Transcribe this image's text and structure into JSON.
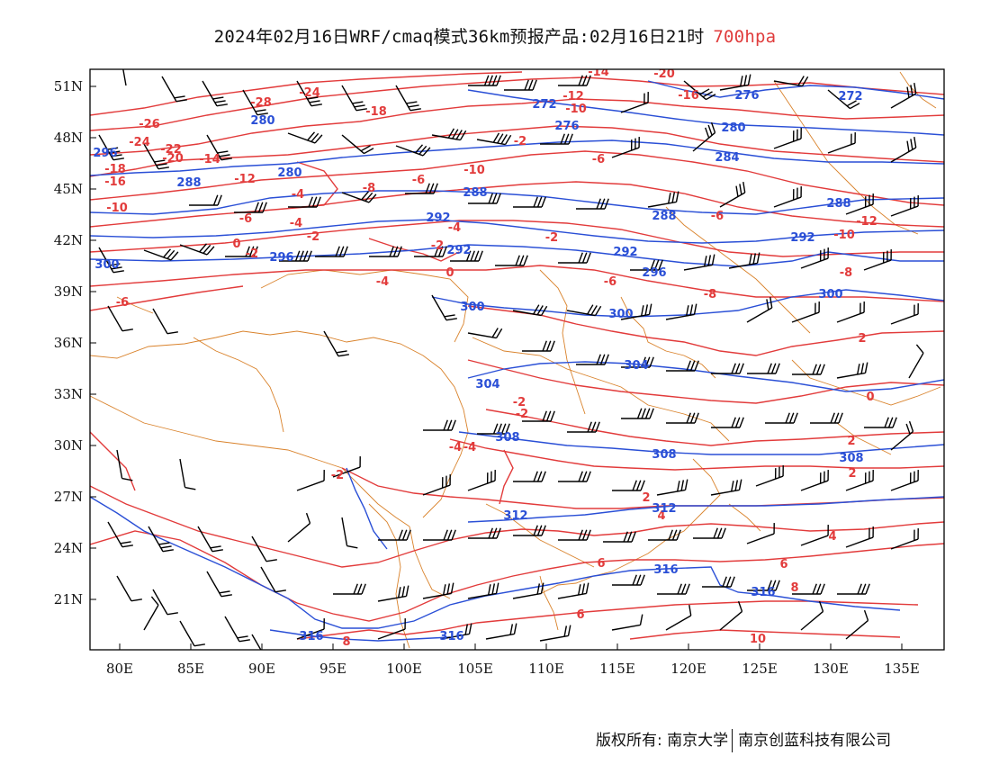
{
  "title": {
    "main": "2024年02月16日WRF/cmaq模式36km预报产品:02月16日21时",
    "level": "700hpa"
  },
  "colors": {
    "temperature": "#e23b3b",
    "height": "#2a4fd6",
    "boundary": "#d9822b",
    "wind": "#000000",
    "level_text": "#e03c3c"
  },
  "axes": {
    "lat_labels": [
      "51N",
      "48N",
      "45N",
      "42N",
      "39N",
      "36N",
      "33N",
      "30N",
      "27N",
      "24N",
      "21N"
    ],
    "lon_labels": [
      "80E",
      "85E",
      "90E",
      "95E",
      "100E",
      "105E",
      "110E",
      "115E",
      "120E",
      "125E",
      "130E",
      "135E"
    ]
  },
  "temperature_labels": [
    "-20",
    "-14",
    "-12",
    "-10",
    "-16",
    "-28",
    "-24",
    "-18",
    "-26",
    "-24",
    "-22",
    "-20",
    "-14",
    "-18",
    "-16",
    "-12",
    "-10",
    "-8",
    "-6",
    "-4",
    "-10",
    "-6",
    "-4",
    "-2",
    "0",
    "-2",
    "-2",
    "-2",
    "0",
    "-6",
    "-8",
    "-6",
    "-12",
    "-10",
    "-8",
    "-6",
    "-2",
    "-4",
    "-6",
    "-4",
    "-2",
    "-2",
    "-4",
    "-4",
    "-2",
    "2",
    "0",
    "2",
    "2",
    "4",
    "2",
    "4",
    "6",
    "6",
    "8",
    "6",
    "8",
    "10"
  ],
  "height_labels": [
    "276",
    "272",
    "272",
    "276",
    "280",
    "280",
    "284",
    "280",
    "288",
    "288",
    "288",
    "288",
    "292",
    "292",
    "292",
    "296",
    "292",
    "296",
    "296",
    "300",
    "300",
    "300",
    "300",
    "304",
    "304",
    "308",
    "308",
    "308",
    "312",
    "312",
    "316",
    "316",
    "316",
    "316"
  ],
  "footer": {
    "left": "版权所有: 南京大学",
    "right": "南京创蓝科技有限公司"
  }
}
